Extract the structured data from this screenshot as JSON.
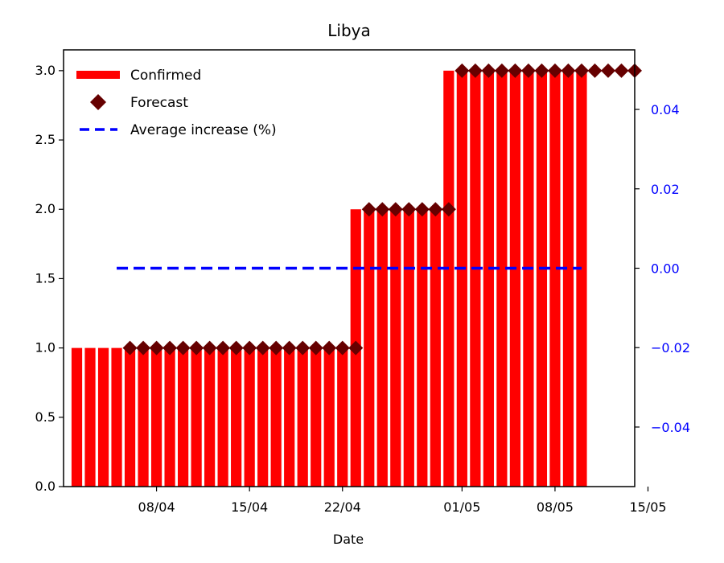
{
  "chart_data": {
    "type": "bar",
    "title": "Libya",
    "xlabel": "Date",
    "ylabel": "",
    "ylim": [
      0,
      3.15
    ],
    "y2lim": [
      -0.055,
      0.055
    ],
    "x_tick_labels": [
      "08/04",
      "15/04",
      "22/04",
      "01/05",
      "08/05",
      "15/05"
    ],
    "y_tick_labels": [
      "0.0",
      "0.5",
      "1.0",
      "1.5",
      "2.0",
      "2.5",
      "3.0"
    ],
    "y2_tick_labels": [
      "−0.04",
      "−0.02",
      "0.00",
      "0.02",
      "0.04"
    ],
    "legend_position": "top-left",
    "series": [
      {
        "name": "Confirmed",
        "kind": "bar",
        "color": "#ff0000",
        "x": [
          "02/04",
          "03/04",
          "04/04",
          "05/04",
          "06/04",
          "07/04",
          "08/04",
          "09/04",
          "10/04",
          "11/04",
          "12/04",
          "13/04",
          "14/04",
          "15/04",
          "16/04",
          "17/04",
          "18/04",
          "19/04",
          "20/04",
          "21/04",
          "22/04",
          "23/04",
          "24/04",
          "25/04",
          "26/04",
          "27/04",
          "28/04",
          "29/04",
          "30/04",
          "01/05",
          "02/05",
          "03/05",
          "04/05",
          "05/05",
          "06/05",
          "07/05",
          "08/05",
          "09/05",
          "10/05"
        ],
        "values": [
          1,
          1,
          1,
          1,
          1,
          1,
          1,
          1,
          1,
          1,
          1,
          1,
          1,
          1,
          1,
          1,
          1,
          1,
          1,
          1,
          1,
          2,
          2,
          2,
          2,
          2,
          2,
          2,
          3,
          3,
          3,
          3,
          3,
          3,
          3,
          3,
          3,
          3,
          3
        ]
      },
      {
        "name": "Forecast",
        "kind": "scatter",
        "color": "#660000",
        "marker": "diamond",
        "x": [
          "06/04",
          "07/04",
          "08/04",
          "09/04",
          "10/04",
          "11/04",
          "12/04",
          "13/04",
          "14/04",
          "15/04",
          "16/04",
          "17/04",
          "18/04",
          "19/04",
          "20/04",
          "21/04",
          "22/04",
          "23/04",
          "24/04",
          "25/04",
          "26/04",
          "27/04",
          "28/04",
          "29/04",
          "30/04",
          "01/05",
          "02/05",
          "03/05",
          "04/05",
          "05/05",
          "06/05",
          "07/05",
          "08/05",
          "09/05",
          "10/05",
          "11/05",
          "12/05",
          "13/05",
          "14/05"
        ],
        "values": [
          1,
          1,
          1,
          1,
          1,
          1,
          1,
          1,
          1,
          1,
          1,
          1,
          1,
          1,
          1,
          1,
          1,
          1,
          2,
          2,
          2,
          2,
          2,
          2,
          2,
          3,
          3,
          3,
          3,
          3,
          3,
          3,
          3,
          3,
          3,
          3,
          3,
          3,
          3
        ]
      },
      {
        "name": "Average increase (%)",
        "kind": "line",
        "axis": "right",
        "color": "#0000ff",
        "dash": "dashed",
        "x": [
          "05/04",
          "10/05"
        ],
        "values": [
          0.0,
          0.0
        ]
      }
    ],
    "colors": {
      "confirmed": "#ff0000",
      "forecast": "#660000",
      "average": "#0000ff",
      "right_axis": "#0000ff"
    }
  }
}
